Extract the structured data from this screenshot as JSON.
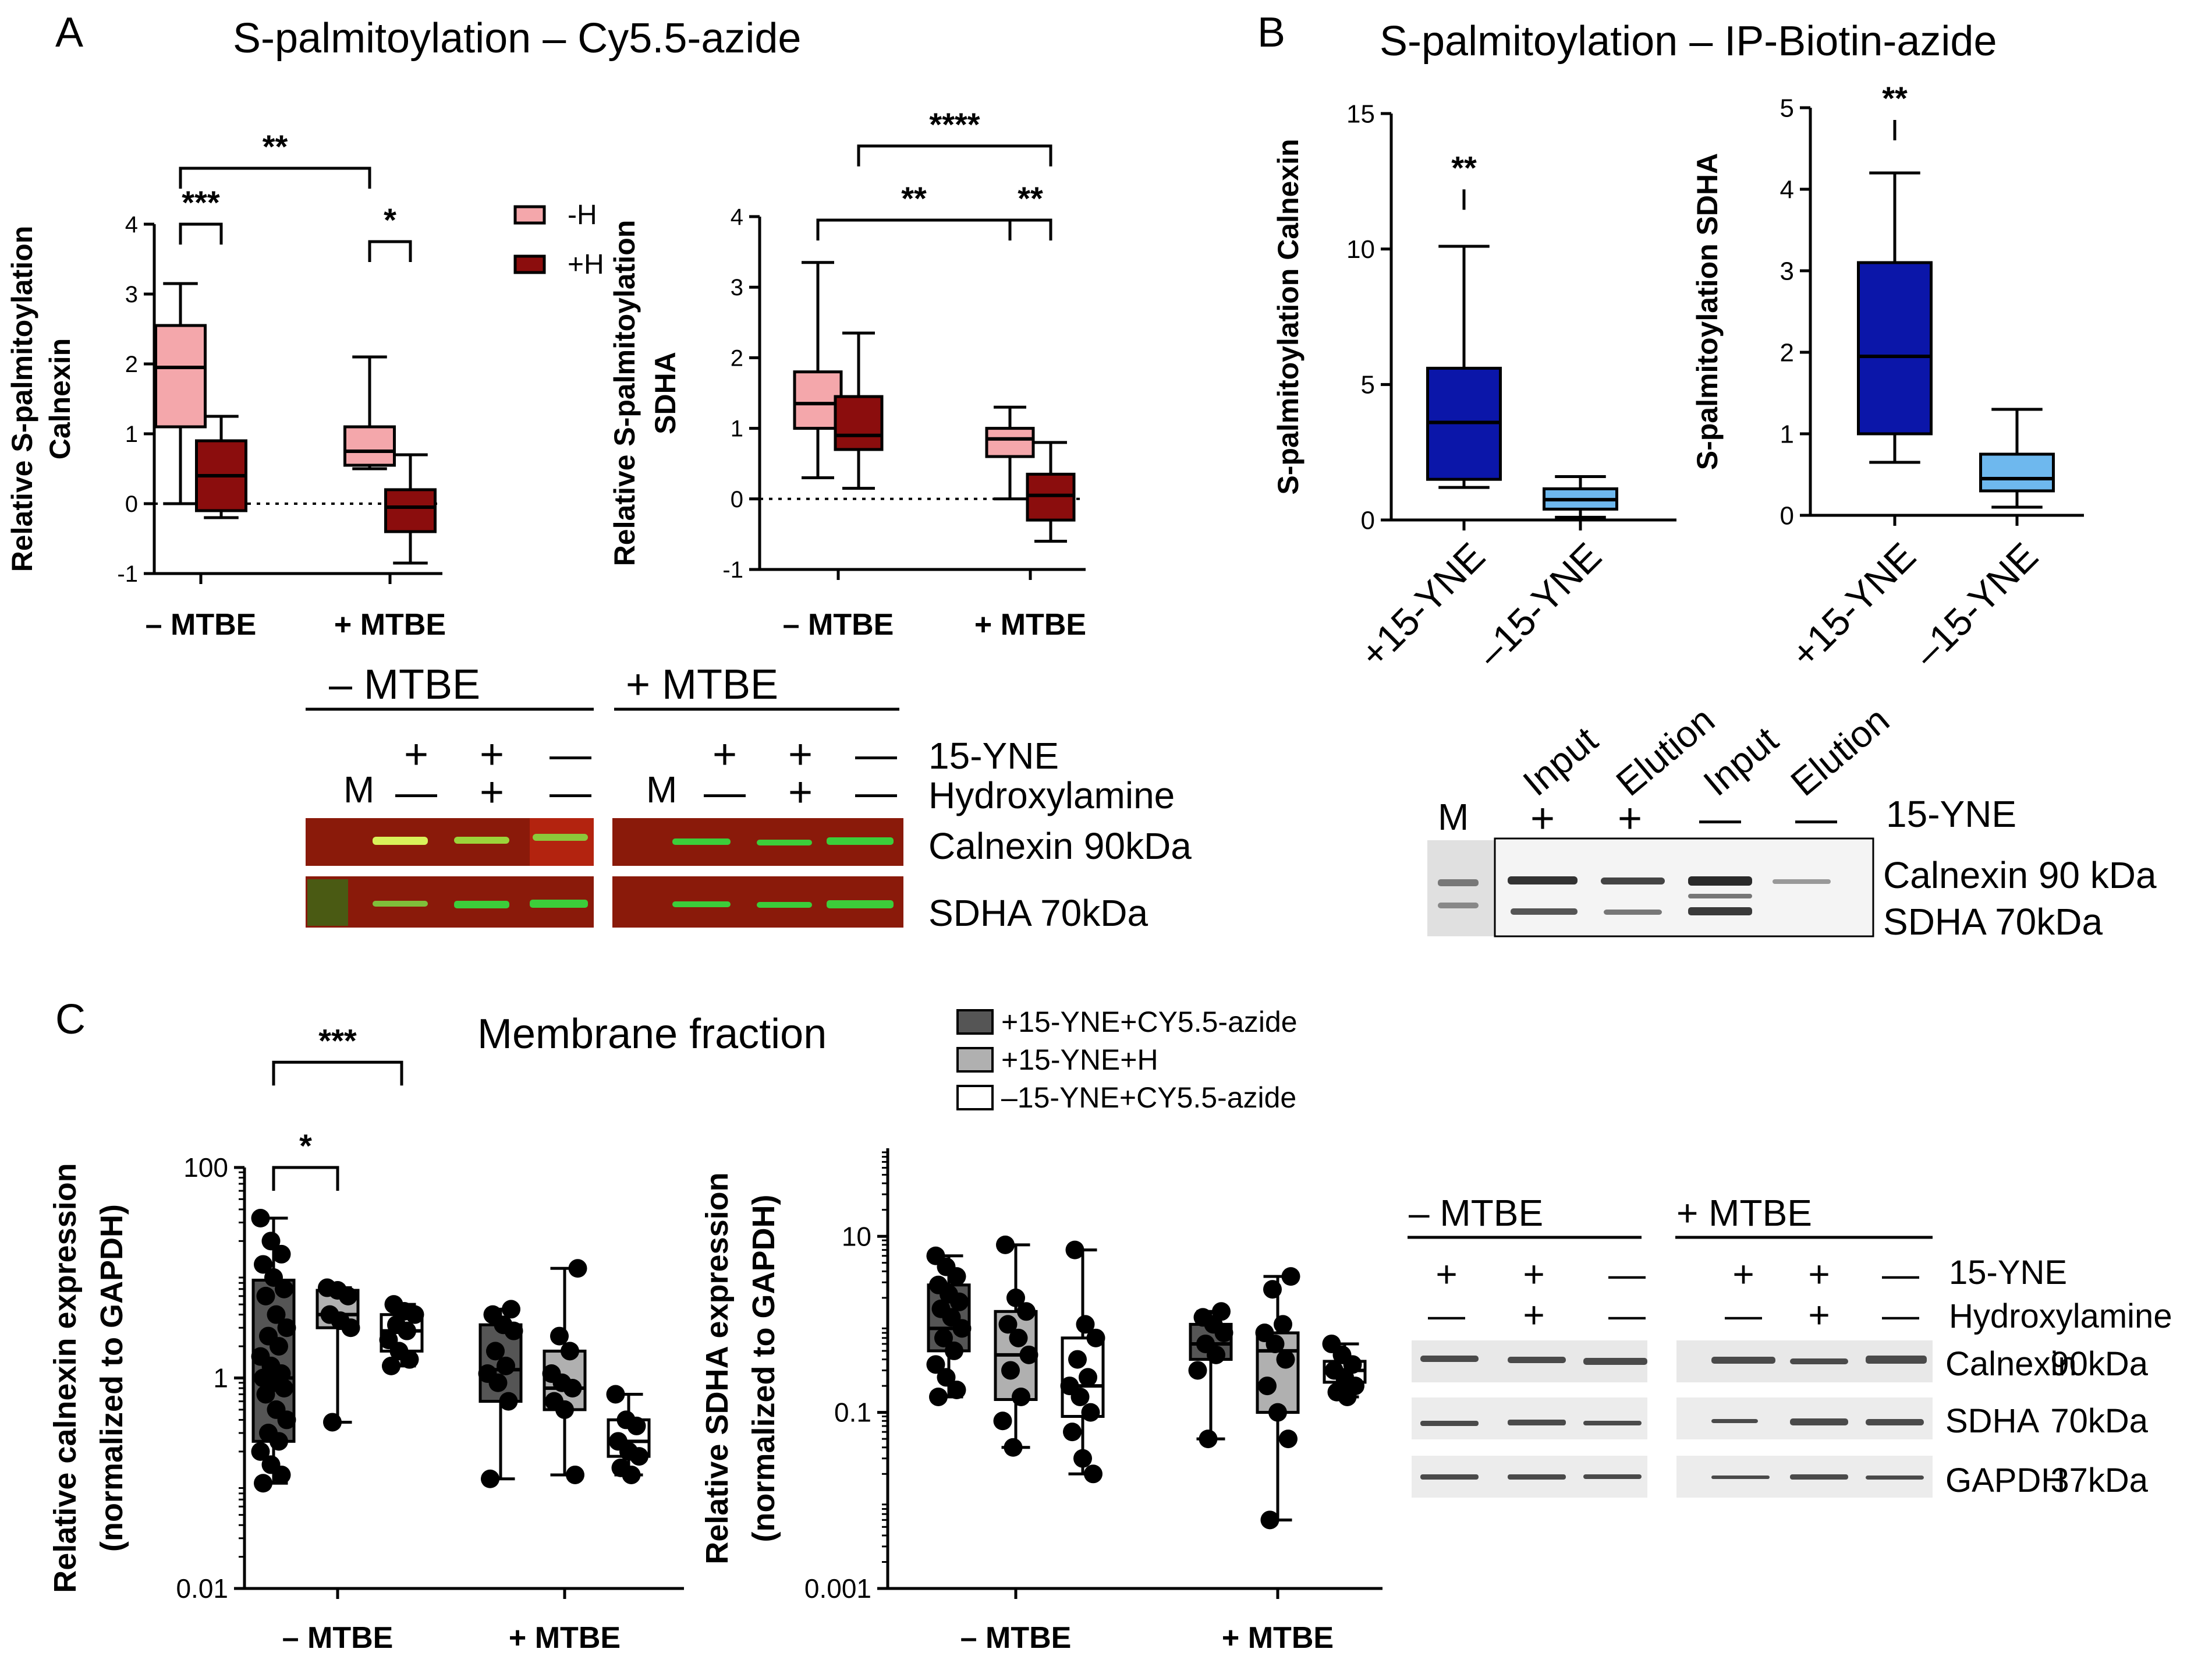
{
  "panel_letters": {
    "a": "A",
    "b": "B",
    "c": "C"
  },
  "titles": {
    "a": "S-palmitoylation – Cy5.5-azide",
    "b": "S-palmitoylation – IP-Biotin-azide",
    "c": "Membrane fraction"
  },
  "colors": {
    "pink": "#f4a7ab",
    "darkred": "#8b0d0d",
    "darkblue": "#0b16a9",
    "lightblue": "#6eb8ee",
    "dgray": "#555555",
    "mgray": "#b0b0b0",
    "white": "#ffffff",
    "axis": "#000000"
  },
  "legend_a": [
    {
      "label": "-H",
      "color": "#f4a7ab"
    },
    {
      "label": "+H",
      "color": "#8b0d0d"
    }
  ],
  "legend_c": [
    {
      "label": "+15-YNE+CY5.5-azide",
      "color": "#555555"
    },
    {
      "label": "+15-YNE+H",
      "color": "#b0b0b0"
    },
    {
      "label": "–15-YNE+CY5.5-azide",
      "color": "#ffffff"
    }
  ],
  "chart_data": [
    {
      "id": "a1",
      "type": "box",
      "scale": "linear",
      "ylabel_lines": [
        "Relative S-palmitoylation",
        "Calnexin"
      ],
      "categories": [
        "– MTBE",
        "+ MTBE"
      ],
      "ylim": [
        -1,
        4
      ],
      "ticks": [
        -1,
        0,
        1,
        2,
        3,
        4
      ],
      "zero_line": true,
      "series": [
        {
          "name": "-H",
          "color": "#f4a7ab",
          "boxes": [
            {
              "min": 0.0,
              "q1": 1.1,
              "median": 1.95,
              "q3": 2.55,
              "max": 3.15
            },
            {
              "min": 0.5,
              "q1": 0.55,
              "median": 0.75,
              "q3": 1.1,
              "max": 2.1
            }
          ]
        },
        {
          "name": "+H",
          "color": "#8b0d0d",
          "boxes": [
            {
              "min": -0.2,
              "q1": -0.1,
              "median": 0.4,
              "q3": 0.9,
              "max": 1.25
            },
            {
              "min": -0.85,
              "q1": -0.4,
              "median": -0.05,
              "q3": 0.2,
              "max": 0.7
            }
          ]
        }
      ],
      "significance": [
        {
          "label": "***",
          "from": [
            0,
            0
          ],
          "to": [
            0,
            1
          ],
          "level": 4.0
        },
        {
          "label": "*",
          "from": [
            1,
            0
          ],
          "to": [
            1,
            1
          ],
          "level": 3.75
        },
        {
          "label": "**",
          "from": [
            0,
            0
          ],
          "to": [
            1,
            0
          ],
          "level": 4.8
        }
      ]
    },
    {
      "id": "a2",
      "type": "box",
      "scale": "linear",
      "ylabel_lines": [
        "Relative S-palmitoylation",
        "SDHA"
      ],
      "categories": [
        "– MTBE",
        "+ MTBE"
      ],
      "ylim": [
        -1,
        4
      ],
      "ticks": [
        -1,
        0,
        1,
        2,
        3,
        4
      ],
      "zero_line": true,
      "series": [
        {
          "name": "-H",
          "color": "#f4a7ab",
          "boxes": [
            {
              "min": 0.3,
              "q1": 1.0,
              "median": 1.35,
              "q3": 1.8,
              "max": 3.35
            },
            {
              "min": 0.0,
              "q1": 0.6,
              "median": 0.85,
              "q3": 1.0,
              "max": 1.3
            }
          ]
        },
        {
          "name": "+H",
          "color": "#8b0d0d",
          "boxes": [
            {
              "min": 0.15,
              "q1": 0.7,
              "median": 0.9,
              "q3": 1.45,
              "max": 2.35
            },
            {
              "min": -0.6,
              "q1": -0.3,
              "median": 0.05,
              "q3": 0.35,
              "max": 0.8
            }
          ]
        }
      ],
      "significance": [
        {
          "label": "**",
          "from": [
            0,
            0
          ],
          "to": [
            1,
            0
          ],
          "level": 3.95
        },
        {
          "label": "**",
          "from": [
            1,
            0
          ],
          "to": [
            1,
            1
          ],
          "level": 3.95
        },
        {
          "label": "****",
          "from": [
            0,
            1
          ],
          "to": [
            1,
            1
          ],
          "level": 5.0
        }
      ]
    },
    {
      "id": "b1",
      "type": "box",
      "scale": "linear",
      "ylabel_lines": [
        "S-palmitoylation  Calnexin"
      ],
      "categories": [
        "+15-YNE",
        "–15-YNE"
      ],
      "ylim": [
        0,
        15
      ],
      "ticks": [
        0,
        5,
        10,
        15
      ],
      "series": [
        {
          "name": "+15-YNE",
          "color": "#0b16a9",
          "boxes": [
            {
              "min": 1.2,
              "q1": 1.5,
              "median": 3.6,
              "q3": 5.6,
              "max": 10.1
            }
          ]
        },
        {
          "name": "–15-YNE",
          "color": "#6eb8ee",
          "boxes": [
            {
              "min": 0.1,
              "q1": 0.4,
              "median": 0.75,
              "q3": 1.15,
              "max": 1.6
            }
          ]
        }
      ],
      "significance": [
        {
          "label": "**",
          "from": [
            0,
            0
          ],
          "to": [
            1,
            0
          ],
          "level": 12.2
        }
      ]
    },
    {
      "id": "b2",
      "type": "box",
      "scale": "linear",
      "ylabel_lines": [
        "S-palmitoylation SDHA"
      ],
      "categories": [
        "+15-YNE",
        "–15-YNE"
      ],
      "ylim": [
        0,
        5
      ],
      "ticks": [
        0,
        1,
        2,
        3,
        4,
        5
      ],
      "series": [
        {
          "name": "+15-YNE",
          "color": "#0b16a9",
          "boxes": [
            {
              "min": 0.65,
              "q1": 1.0,
              "median": 1.95,
              "q3": 3.1,
              "max": 4.2
            }
          ]
        },
        {
          "name": "–15-YNE",
          "color": "#6eb8ee",
          "boxes": [
            {
              "min": 0.1,
              "q1": 0.3,
              "median": 0.45,
              "q3": 0.75,
              "max": 1.3
            }
          ]
        }
      ],
      "significance": [
        {
          "label": "**",
          "from": [
            0,
            0
          ],
          "to": [
            1,
            0
          ],
          "level": 4.85
        }
      ]
    },
    {
      "id": "c1",
      "type": "box",
      "scale": "log",
      "ylabel_lines": [
        "Relative calnexin expression",
        "(normalized to GAPDH)"
      ],
      "categories": [
        "– MTBE",
        "+ MTBE"
      ],
      "ylim": [
        0.01,
        100
      ],
      "ticks": [
        0.01,
        1,
        100
      ],
      "tick_labels": [
        "0.01",
        "1",
        "100"
      ],
      "series": [
        {
          "name": "+15-YNE+CY5.5-azide",
          "color": "#555555",
          "boxes": [
            {
              "min": 0.1,
              "q1": 0.25,
              "median": 1.0,
              "q3": 8.5,
              "max": 33,
              "points": [
                33,
                20,
                15,
                12,
                9,
                7,
                6,
                4,
                3,
                2.5,
                2,
                1.6,
                1.3,
                1.1,
                1.0,
                0.9,
                0.8,
                0.7,
                0.5,
                0.4,
                0.3,
                0.25,
                0.2,
                0.15,
                0.12,
                0.1
              ]
            },
            {
              "min": 0.11,
              "q1": 0.6,
              "median": 1.2,
              "q3": 3.2,
              "max": 4.5,
              "points": [
                4.5,
                4.0,
                3.2,
                2.8,
                1.8,
                1.3,
                1.1,
                0.9,
                0.6,
                0.11
              ]
            }
          ]
        },
        {
          "name": "+15-YNE+H",
          "color": "#b0b0b0",
          "boxes": [
            {
              "min": 0.38,
              "q1": 3.0,
              "median": 4.0,
              "q3": 6.8,
              "max": 7.2,
              "points": [
                7.2,
                6.8,
                6.0,
                4.0,
                3.5,
                3.0,
                0.38
              ]
            },
            {
              "min": 0.12,
              "q1": 0.5,
              "median": 0.8,
              "q3": 1.8,
              "max": 11,
              "points": [
                11,
                2.5,
                1.8,
                1.1,
                0.9,
                0.8,
                0.6,
                0.5,
                0.12
              ]
            }
          ]
        },
        {
          "name": "–15-YNE+CY5.5-azide",
          "color": "#ffffff",
          "boxes": [
            {
              "min": 1.3,
              "q1": 1.8,
              "median": 2.8,
              "q3": 4.0,
              "max": 5.0,
              "points": [
                5.0,
                4.3,
                4.0,
                3.2,
                2.8,
                2.3,
                1.8,
                1.5,
                1.3
              ]
            },
            {
              "min": 0.12,
              "q1": 0.18,
              "median": 0.25,
              "q3": 0.4,
              "max": 0.7,
              "points": [
                0.7,
                0.4,
                0.35,
                0.25,
                0.2,
                0.18,
                0.14,
                0.12
              ]
            }
          ]
        }
      ],
      "significance": [
        {
          "label": "*",
          "from": [
            0,
            0
          ],
          "to": [
            0,
            1
          ],
          "level": 100
        },
        {
          "label": "***",
          "from": [
            0,
            0
          ],
          "to": [
            0,
            2
          ],
          "level": 1000
        }
      ]
    },
    {
      "id": "c2",
      "type": "box",
      "scale": "log",
      "ylabel_lines": [
        "Relative SDHA expression",
        "(normalized to GAPDH)"
      ],
      "categories": [
        "– MTBE",
        "+ MTBE"
      ],
      "ylim": [
        0.001,
        100
      ],
      "ticks": [
        0.001,
        0.1,
        10
      ],
      "tick_labels": [
        "0.001",
        "0.1",
        "10"
      ],
      "series": [
        {
          "name": "+15-YNE+CY5.5-azide",
          "color": "#555555",
          "boxes": [
            {
              "min": 0.15,
              "q1": 0.5,
              "median": 0.9,
              "q3": 2.8,
              "max": 6.0,
              "points": [
                6.0,
                4.5,
                3.5,
                2.8,
                2.2,
                1.8,
                1.5,
                1.2,
                0.9,
                0.7,
                0.5,
                0.35,
                0.25,
                0.18,
                0.15
              ]
            },
            {
              "min": 0.05,
              "q1": 0.4,
              "median": 0.6,
              "q3": 1.0,
              "max": 1.4,
              "points": [
                1.4,
                1.2,
                1.0,
                0.8,
                0.6,
                0.45,
                0.3,
                0.05
              ]
            }
          ]
        },
        {
          "name": "+15-YNE+H",
          "color": "#b0b0b0",
          "boxes": [
            {
              "min": 0.04,
              "q1": 0.14,
              "median": 0.45,
              "q3": 1.4,
              "max": 8.0,
              "points": [
                8.0,
                2.0,
                1.4,
                1.0,
                0.7,
                0.45,
                0.3,
                0.15,
                0.08,
                0.04
              ]
            },
            {
              "min": 0.006,
              "q1": 0.1,
              "median": 0.5,
              "q3": 0.8,
              "max": 3.5,
              "points": [
                3.5,
                2.5,
                1.0,
                0.8,
                0.6,
                0.4,
                0.2,
                0.1,
                0.05,
                0.006
              ]
            }
          ]
        },
        {
          "name": "–15-YNE+CY5.5-azide",
          "color": "#ffffff",
          "boxes": [
            {
              "min": 0.02,
              "q1": 0.09,
              "median": 0.2,
              "q3": 0.7,
              "max": 7.0,
              "points": [
                7.0,
                1.0,
                0.7,
                0.4,
                0.25,
                0.2,
                0.15,
                0.1,
                0.06,
                0.03,
                0.02
              ]
            },
            {
              "min": 0.15,
              "q1": 0.22,
              "median": 0.3,
              "q3": 0.38,
              "max": 0.6,
              "points": [
                0.6,
                0.45,
                0.35,
                0.3,
                0.25,
                0.2,
                0.17,
                0.15
              ]
            }
          ]
        }
      ],
      "significance": []
    }
  ],
  "blot_a": {
    "groups": [
      "– MTBE",
      "+ MTBE"
    ],
    "marker": "M",
    "yne_row": [
      "+",
      "+",
      "—"
    ],
    "hyd_row": [
      "—",
      "+",
      "—"
    ],
    "row_labels": [
      "15-YNE",
      "Hydroxylamine"
    ],
    "band_labels": [
      "Calnexin 90kDa",
      "SDHA 70kDa"
    ]
  },
  "blot_b": {
    "lanes": [
      "Input",
      "Elution",
      "Input",
      "Elution"
    ],
    "marker": "M",
    "yne_row": [
      "+",
      "+",
      "—",
      "—"
    ],
    "row_label": "15-YNE",
    "band_labels": [
      "Calnexin 90 kDa",
      "SDHA 70kDa"
    ]
  },
  "blot_c": {
    "groups": [
      "– MTBE",
      "+ MTBE"
    ],
    "yne_row": [
      "+",
      "+",
      "—"
    ],
    "hyd_row": [
      "—",
      "+",
      "—"
    ],
    "row_labels": [
      "15-YNE",
      "Hydroxylamine"
    ],
    "band_names": [
      "Calnexin",
      "SDHA",
      "GAPDH"
    ],
    "band_sizes": [
      "90kDa",
      "70kDa",
      "37kDa"
    ]
  }
}
